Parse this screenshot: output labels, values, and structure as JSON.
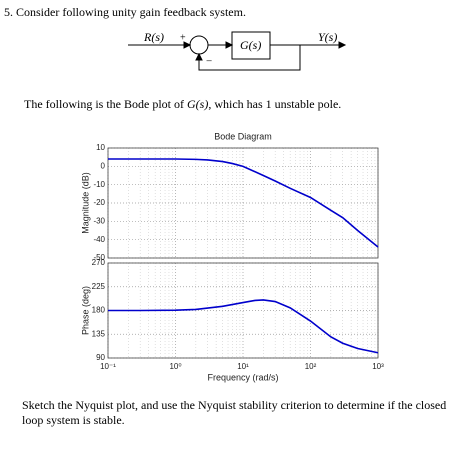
{
  "question": {
    "number": "5.",
    "text": "Consider following unity gain feedback system."
  },
  "diagram": {
    "input": "R(s)",
    "plus": "+",
    "minus": "−",
    "block": "G(s)",
    "output": "Y(s)"
  },
  "intro": {
    "before": "The following is the Bode plot of",
    "math": "G(s)",
    "after": ", which has 1 unstable pole."
  },
  "chart_data": [
    {
      "type": "line",
      "title": "Bode Diagram",
      "ylabel": "Magnitude (dB)",
      "xscale": "log",
      "grid": true,
      "color": "#0000cc",
      "x": [
        0.1,
        0.3,
        1,
        2,
        3,
        5,
        7,
        10,
        20,
        30,
        50,
        100,
        200,
        300,
        500,
        1000
      ],
      "values": [
        4,
        4,
        4,
        3.8,
        3.5,
        2.6,
        1.5,
        0,
        -5,
        -8,
        -12,
        -17,
        -24,
        -28,
        -35,
        -44
      ],
      "xlim": [
        0.1,
        1000
      ],
      "xticks": [
        0.1,
        1,
        10,
        100,
        1000
      ],
      "ylim": [
        -50,
        10
      ],
      "yticks": [
        -50,
        -40,
        -30,
        -20,
        -10,
        0,
        10
      ]
    },
    {
      "type": "line",
      "ylabel": "Phase (deg)",
      "xlabel": "Frequency  (rad/s)",
      "xscale": "log",
      "grid": true,
      "color": "#0000cc",
      "x": [
        0.1,
        0.3,
        1,
        2,
        5,
        10,
        15,
        20,
        30,
        50,
        100,
        200,
        300,
        500,
        1000
      ],
      "values": [
        180,
        180,
        180.5,
        182,
        188,
        195,
        199,
        200,
        197,
        185,
        160,
        130,
        118,
        108,
        100
      ],
      "xlim": [
        0.1,
        1000
      ],
      "xticks": [
        {
          "value": 0.1,
          "label": "10⁻¹"
        },
        {
          "value": 1,
          "label": "10⁰"
        },
        {
          "value": 10,
          "label": "10¹"
        },
        {
          "value": 100,
          "label": "10²"
        },
        {
          "value": 1000,
          "label": "10³"
        }
      ],
      "ylim": [
        90,
        270
      ],
      "yticks": [
        90,
        135,
        180,
        225,
        270
      ]
    }
  ],
  "closing": "Sketch the Nyquist plot, and use the Nyquist stability criterion to determine if the closed loop system is stable."
}
